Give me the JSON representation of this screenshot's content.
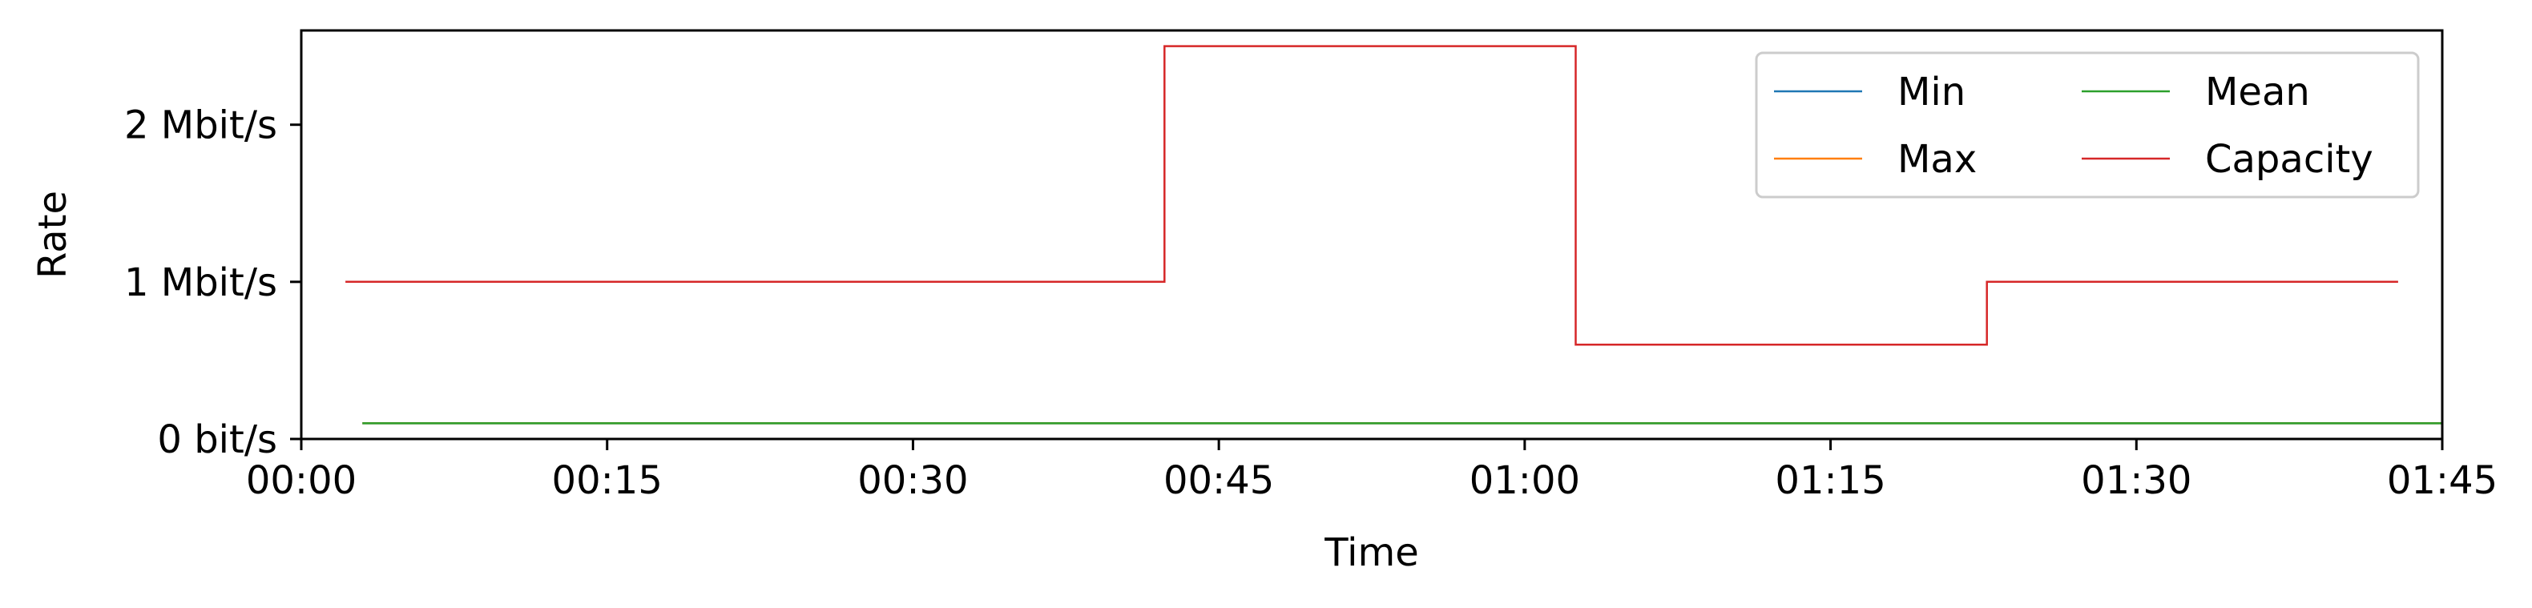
{
  "chart_data": {
    "type": "line",
    "xlabel": "Time",
    "ylabel": "Rate",
    "x_unit": "seconds",
    "xlim": [
      0,
      6300
    ],
    "ylim": [
      0,
      2600000
    ],
    "x_ticks": [
      {
        "value": 0,
        "label": "00:00"
      },
      {
        "value": 900,
        "label": "00:15"
      },
      {
        "value": 1800,
        "label": "00:30"
      },
      {
        "value": 2700,
        "label": "00:45"
      },
      {
        "value": 3600,
        "label": "01:00"
      },
      {
        "value": 4500,
        "label": "01:15"
      },
      {
        "value": 5400,
        "label": "01:30"
      },
      {
        "value": 6300,
        "label": "01:45"
      }
    ],
    "y_ticks": [
      {
        "value": 0,
        "label": "0 bit/s"
      },
      {
        "value": 1000000,
        "label": "1 Mbit/s"
      },
      {
        "value": 2000000,
        "label": "2 Mbit/s"
      }
    ],
    "grid": false,
    "legend": {
      "placement": "top-right",
      "columns": 2
    },
    "series": [
      {
        "name": "Min",
        "color": "#1f77b4",
        "step": false,
        "x": [
          180,
          6300
        ],
        "y": [
          100000,
          100000
        ]
      },
      {
        "name": "Max",
        "color": "#ff7f0e",
        "step": false,
        "x": [
          180,
          6300
        ],
        "y": [
          100000,
          100000
        ]
      },
      {
        "name": "Mean",
        "color": "#2ca02c",
        "step": false,
        "x": [
          180,
          6300
        ],
        "y": [
          100000,
          100000
        ]
      },
      {
        "name": "Capacity",
        "color": "#d62728",
        "step": true,
        "x": [
          130,
          2540,
          3750,
          4960,
          6170
        ],
        "y": [
          1000000,
          2500000,
          600000,
          1000000,
          1000000
        ]
      }
    ]
  }
}
